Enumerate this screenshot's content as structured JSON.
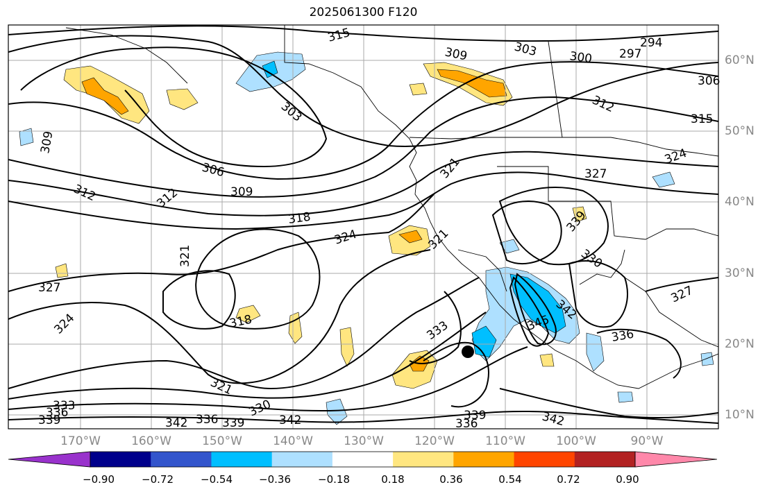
{
  "title": "2025061300 F120",
  "lat_labels": [
    "60°N",
    "50°N",
    "40°N",
    "30°N",
    "20°N",
    "10°N"
  ],
  "lon_labels": [
    "170°W",
    "160°W",
    "150°W",
    "140°W",
    "130°W",
    "120°W",
    "110°W",
    "100°W",
    "90°W"
  ],
  "colorbar": {
    "colors": [
      "#9932CC",
      "#00008B",
      "#3355CC",
      "#00BFFF",
      "#AEE0FF",
      "#FFFFFF",
      "#FFE680",
      "#FFA500",
      "#FF4500",
      "#B22222",
      "#FF88AA"
    ],
    "ticks": [
      "−0.90",
      "−0.72",
      "−0.54",
      "−0.36",
      "−0.18",
      "0.18",
      "0.36",
      "0.54",
      "0.72",
      "0.90"
    ]
  },
  "contour_labels": [
    "315",
    "309",
    "303",
    "300",
    "297",
    "294",
    "306",
    "312",
    "315",
    "303",
    "309",
    "306",
    "312",
    "309",
    "312",
    "318",
    "324",
    "321",
    "321",
    "327",
    "324",
    "318",
    "333",
    "327",
    "339",
    "330",
    "327",
    "342",
    "345",
    "336",
    "321",
    "333",
    "336",
    "339",
    "342",
    "336",
    "339",
    "330",
    "342",
    "339",
    "336",
    "342",
    "324",
    "321"
  ],
  "marker": "black-dot"
}
